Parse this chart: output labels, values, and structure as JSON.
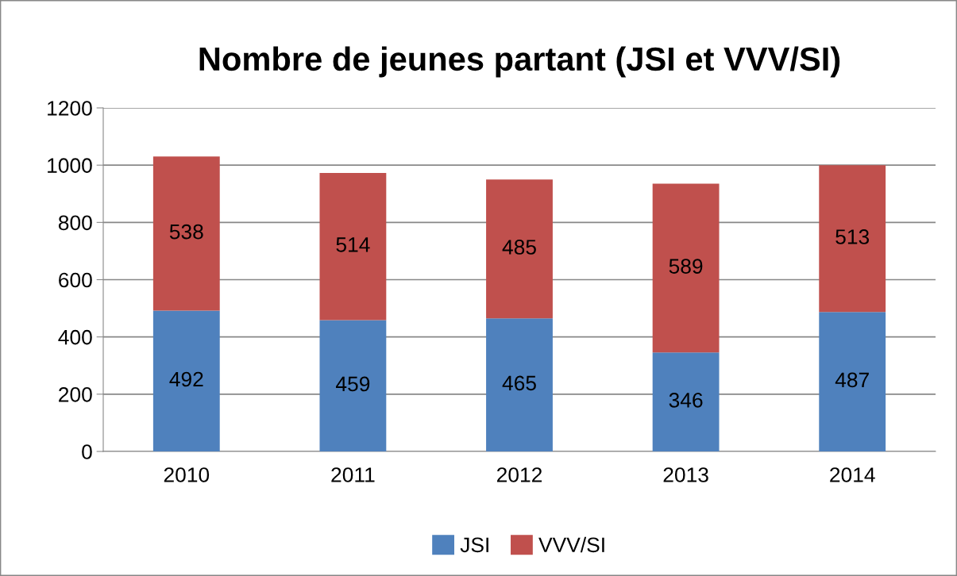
{
  "chart_data": {
    "type": "bar",
    "title": "Nombre de jeunes partant (JSI et VVV/SI)",
    "categories": [
      "2010",
      "2011",
      "2012",
      "2013",
      "2014"
    ],
    "series": [
      {
        "name": "JSI",
        "color": "#4f81bd",
        "values": [
          492,
          459,
          465,
          346,
          487
        ]
      },
      {
        "name": "VVV/SI",
        "color": "#c0504d",
        "values": [
          538,
          514,
          485,
          589,
          513
        ]
      }
    ],
    "stacked": true,
    "data_labels": true,
    "ylim": [
      0,
      1200
    ],
    "yticks": [
      0,
      200,
      400,
      600,
      800,
      1000,
      1200
    ],
    "grid": "y",
    "legend": "bottom"
  }
}
